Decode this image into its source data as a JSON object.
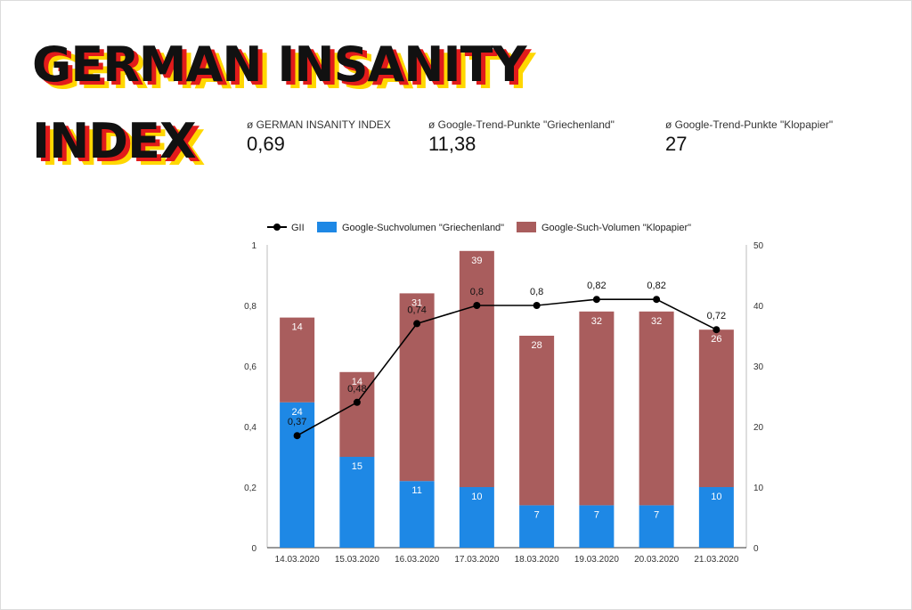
{
  "title": {
    "line1": "GERMAN INSANITY",
    "line2": "INDEX"
  },
  "kpis": [
    {
      "label": "ø GERMAN INSANITY INDEX",
      "value": "0,69"
    },
    {
      "label": "ø Google-Trend-Punkte \"Griechenland\"",
      "value": "11,38"
    },
    {
      "label": "ø Google-Trend-Punkte \"Klopapier\"",
      "value": "27"
    }
  ],
  "chart_data": {
    "type": "bar",
    "stacked": true,
    "categories": [
      "14.03.2020",
      "15.03.2020",
      "16.03.2020",
      "17.03.2020",
      "18.03.2020",
      "19.03.2020",
      "20.03.2020",
      "21.03.2020"
    ],
    "series": [
      {
        "name": "GII",
        "kind": "line",
        "axis": "left",
        "color": "#000000",
        "values": [
          0.37,
          0.48,
          0.74,
          0.8,
          0.8,
          0.82,
          0.82,
          0.72
        ],
        "labels": [
          "0,37",
          "0,48",
          "0,74",
          "0,8",
          "0,8",
          "0,82",
          "0,82",
          "0,72"
        ]
      },
      {
        "name": "Google-Suchvolumen \"Griechenland\"",
        "kind": "bar",
        "axis": "right",
        "color": "#1e88e5",
        "values": [
          24,
          15,
          11,
          10,
          7,
          7,
          7,
          10
        ]
      },
      {
        "name": "Google-Such-Volumen \"Klopapier\"",
        "kind": "bar",
        "axis": "right",
        "color": "#a95d5d",
        "values": [
          14,
          14,
          31,
          39,
          28,
          32,
          32,
          26
        ]
      }
    ],
    "y_left": {
      "ylim": [
        0,
        1
      ],
      "ticks": [
        "0",
        "0,2",
        "0,4",
        "0,6",
        "0,8",
        "1"
      ]
    },
    "y_right": {
      "ylim": [
        0,
        50
      ],
      "ticks": [
        "0",
        "10",
        "20",
        "30",
        "40",
        "50"
      ]
    },
    "legend": "top-left",
    "grid": false
  }
}
